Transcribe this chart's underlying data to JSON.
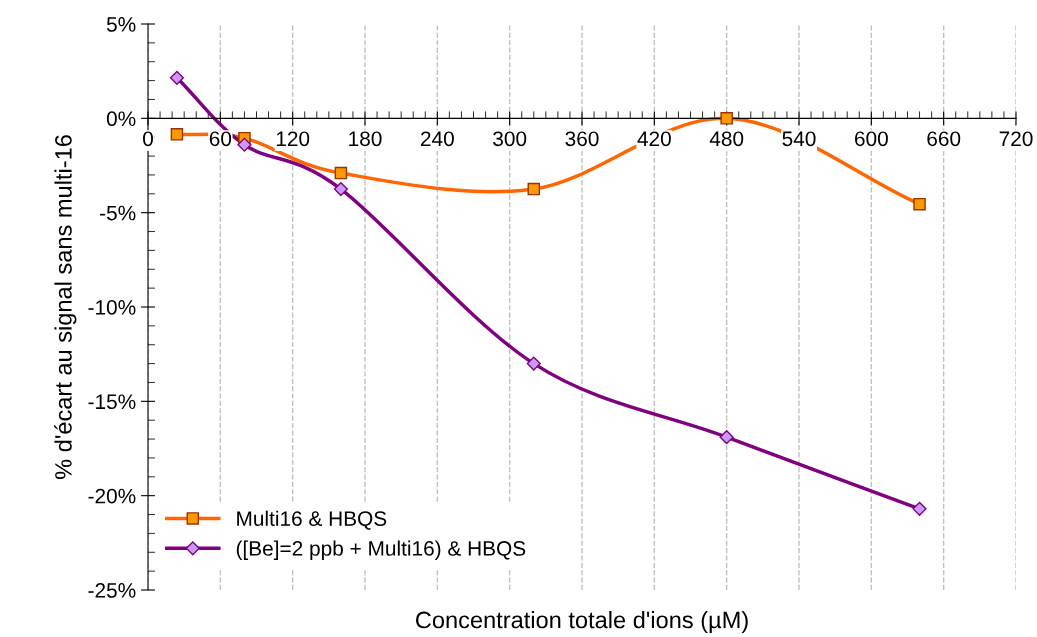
{
  "chart_data": {
    "type": "line",
    "xlabel": "Concentration totale d'ions (µM)",
    "ylabel": "% d'écart au signal sans multi-16",
    "x": [
      24,
      80,
      160,
      320,
      480,
      640
    ],
    "series": [
      {
        "name": "Multi16 & HBQS",
        "color": "#ff6600",
        "marker": "square",
        "values": [
          -0.85,
          -1.05,
          -2.9,
          -3.75,
          0.0,
          -4.55
        ]
      },
      {
        "name": "([Be]=2 ppb + Multi16) & HBQS",
        "color": "#800080",
        "marker": "diamond",
        "values": [
          2.15,
          -1.4,
          -3.75,
          -13.0,
          -16.9,
          -20.7
        ]
      }
    ],
    "xlim": [
      0,
      720
    ],
    "xticks": [
      0,
      60,
      120,
      180,
      240,
      300,
      360,
      420,
      480,
      540,
      600,
      660,
      720
    ],
    "ylim": [
      -25,
      5
    ],
    "yticks": [
      {
        "value": 5,
        "label": "5%"
      },
      {
        "value": 0,
        "label": "0%"
      },
      {
        "value": -5,
        "label": "-5%"
      },
      {
        "value": -10,
        "label": "-10%"
      },
      {
        "value": -15,
        "label": "-15%"
      },
      {
        "value": -20,
        "label": "-20%"
      },
      {
        "value": -25,
        "label": "-25%"
      }
    ],
    "grid": "x",
    "legend": "bottom left",
    "line_style": "solid"
  }
}
